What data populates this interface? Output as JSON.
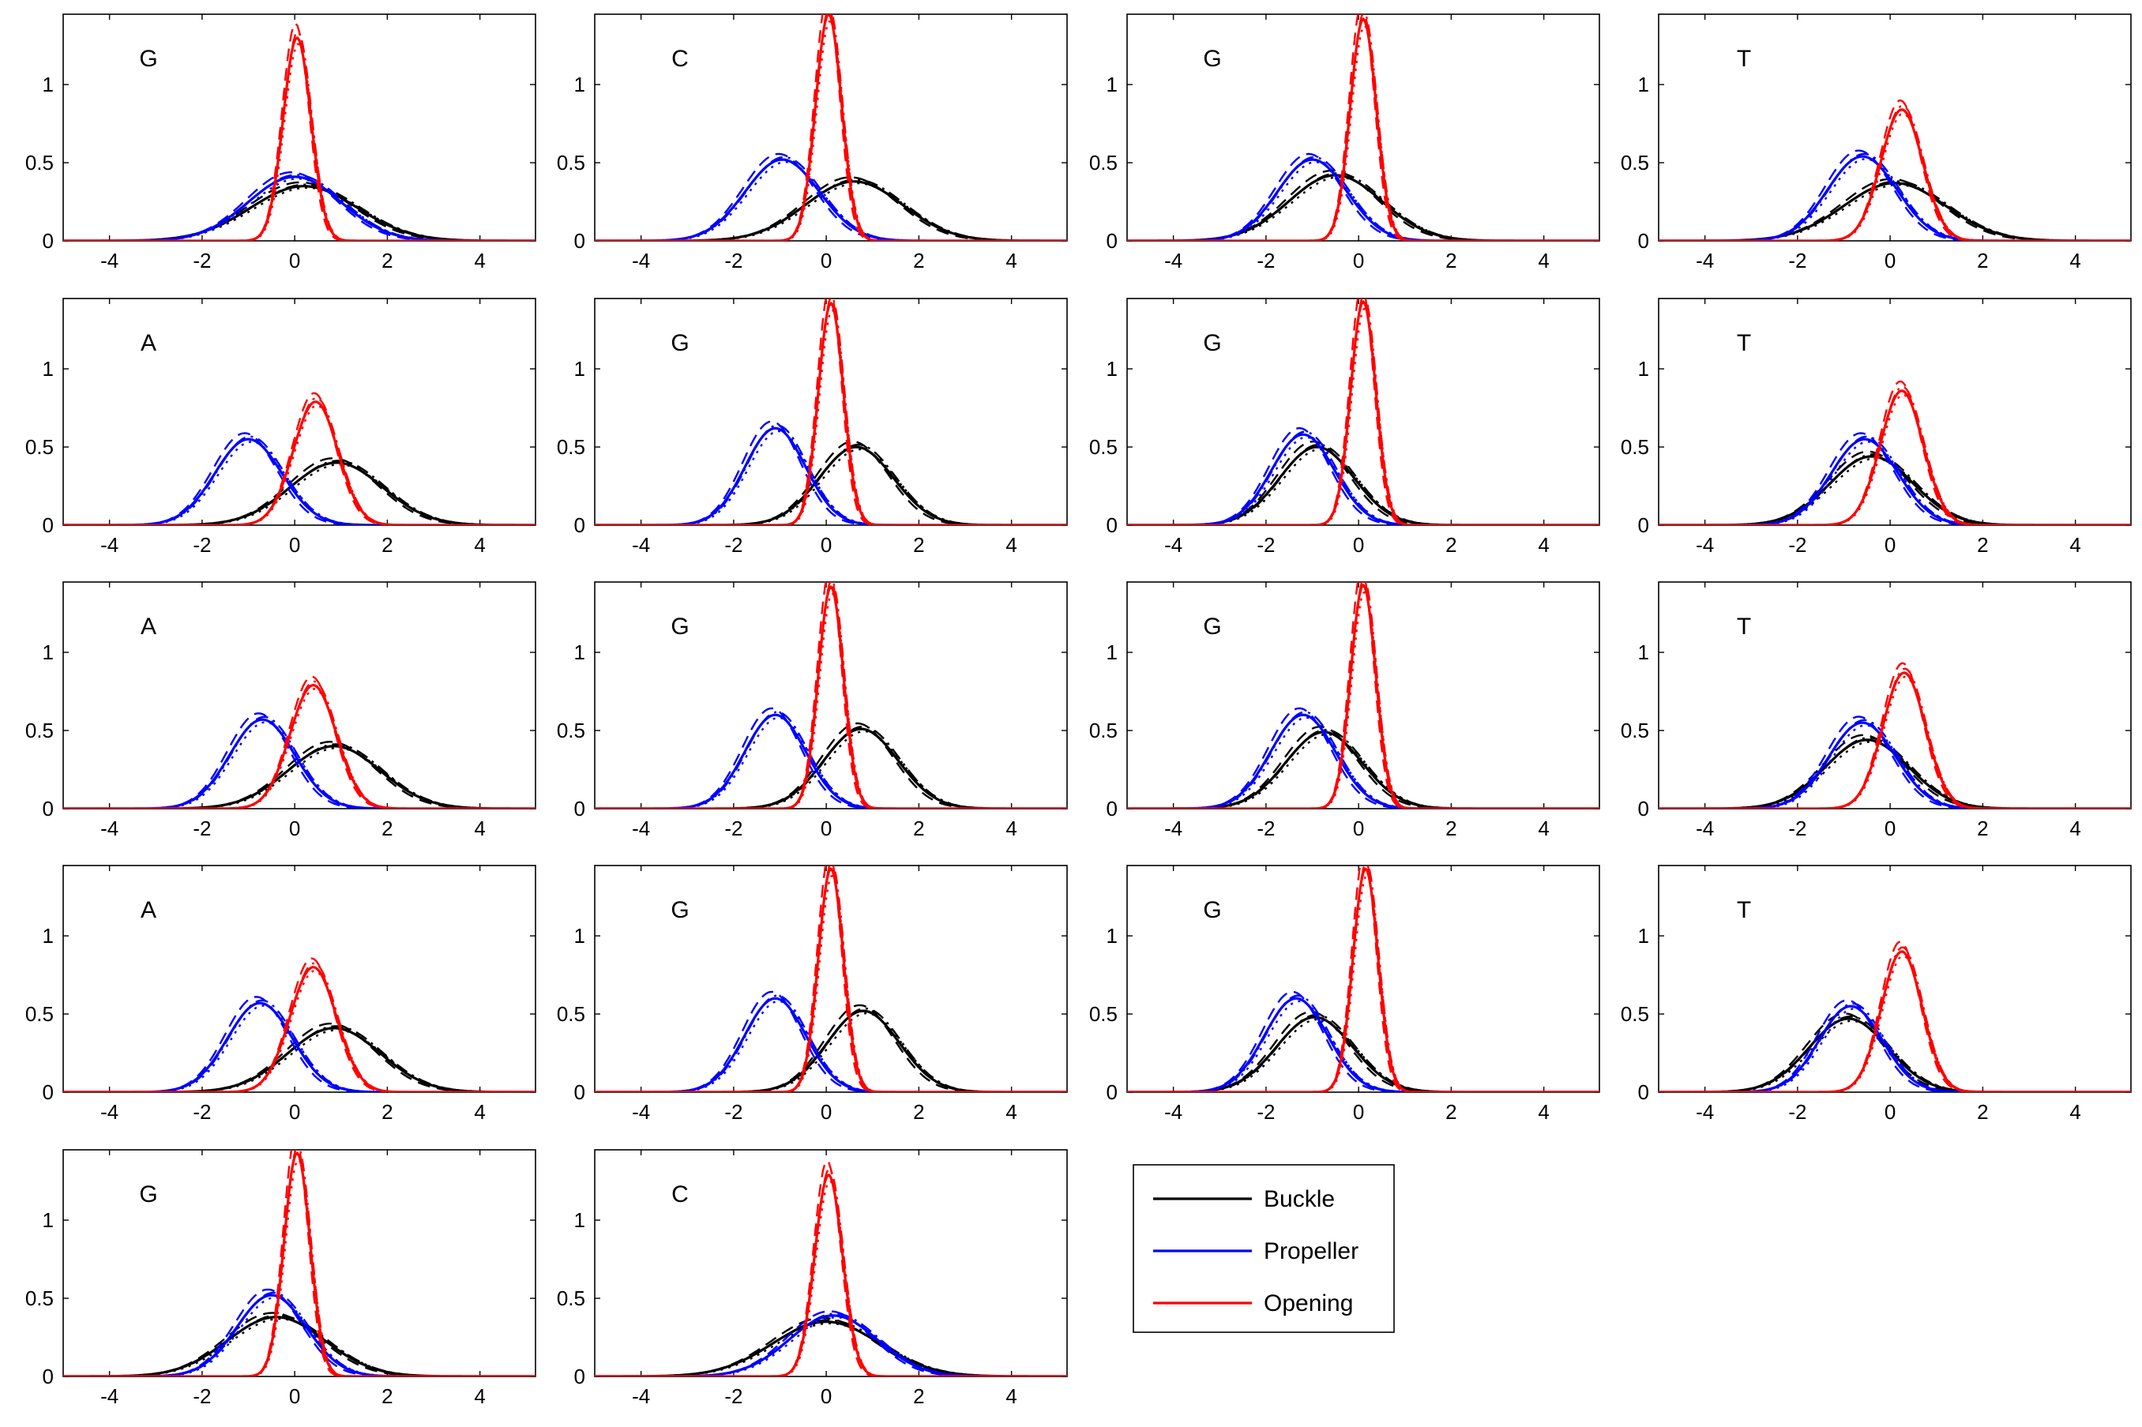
{
  "chart_data": {
    "type": "line",
    "xlim": [
      -5,
      5.2
    ],
    "ylim": [
      0,
      1.45
    ],
    "xticks": [
      -4,
      -2,
      0,
      2,
      4
    ],
    "yticks": [
      0,
      0.5,
      1
    ],
    "grid": false,
    "legend": {
      "placement": "inside empty cell, row 5 column 3",
      "entries": [
        {
          "label": "Buckle",
          "color": "#000000"
        },
        {
          "label": "Propeller",
          "color": "#0000ff"
        },
        {
          "label": "Opening",
          "color": "#ff0000"
        }
      ]
    },
    "series_styles": [
      "solid",
      "dashed",
      "dashdot",
      "dotted"
    ],
    "panels": [
      {
        "label": "G",
        "row": 0,
        "col": 0,
        "buckle": {
          "mu": 0.2,
          "sigma": 1.15,
          "peak": 0.35
        },
        "propeller": {
          "mu": 0.0,
          "sigma": 1.0,
          "peak": 0.41
        },
        "opening": {
          "mu": 0.05,
          "sigma": 0.3,
          "peak": 1.3
        }
      },
      {
        "label": "C",
        "row": 0,
        "col": 1,
        "buckle": {
          "mu": 0.6,
          "sigma": 1.05,
          "peak": 0.38
        },
        "propeller": {
          "mu": -0.95,
          "sigma": 0.8,
          "peak": 0.52
        },
        "opening": {
          "mu": 0.05,
          "sigma": 0.28,
          "peak": 1.45
        }
      },
      {
        "label": "G",
        "row": 0,
        "col": 2,
        "buckle": {
          "mu": -0.5,
          "sigma": 1.0,
          "peak": 0.42
        },
        "propeller": {
          "mu": -1.0,
          "sigma": 0.75,
          "peak": 0.52
        },
        "opening": {
          "mu": 0.1,
          "sigma": 0.28,
          "peak": 1.42
        }
      },
      {
        "label": "T",
        "row": 0,
        "col": 3,
        "buckle": {
          "mu": 0.1,
          "sigma": 1.1,
          "peak": 0.37
        },
        "propeller": {
          "mu": -0.6,
          "sigma": 0.75,
          "peak": 0.54
        },
        "opening": {
          "mu": 0.25,
          "sigma": 0.45,
          "peak": 0.84
        }
      },
      {
        "label": "A",
        "row": 1,
        "col": 0,
        "buckle": {
          "mu": 0.9,
          "sigma": 1.0,
          "peak": 0.4
        },
        "propeller": {
          "mu": -1.0,
          "sigma": 0.72,
          "peak": 0.55
        },
        "opening": {
          "mu": 0.45,
          "sigma": 0.48,
          "peak": 0.79
        }
      },
      {
        "label": "G",
        "row": 1,
        "col": 1,
        "buckle": {
          "mu": 0.65,
          "sigma": 0.8,
          "peak": 0.5
        },
        "propeller": {
          "mu": -1.1,
          "sigma": 0.65,
          "peak": 0.62
        },
        "opening": {
          "mu": 0.1,
          "sigma": 0.27,
          "peak": 1.42
        }
      },
      {
        "label": "G",
        "row": 1,
        "col": 2,
        "buckle": {
          "mu": -0.9,
          "sigma": 0.8,
          "peak": 0.5
        },
        "propeller": {
          "mu": -1.2,
          "sigma": 0.68,
          "peak": 0.58
        },
        "opening": {
          "mu": 0.1,
          "sigma": 0.27,
          "peak": 1.43
        }
      },
      {
        "label": "T",
        "row": 1,
        "col": 3,
        "buckle": {
          "mu": -0.4,
          "sigma": 0.9,
          "peak": 0.44
        },
        "propeller": {
          "mu": -0.55,
          "sigma": 0.72,
          "peak": 0.55
        },
        "opening": {
          "mu": 0.25,
          "sigma": 0.46,
          "peak": 0.86
        }
      },
      {
        "label": "A",
        "row": 2,
        "col": 0,
        "buckle": {
          "mu": 0.85,
          "sigma": 1.0,
          "peak": 0.4
        },
        "propeller": {
          "mu": -0.7,
          "sigma": 0.7,
          "peak": 0.57
        },
        "opening": {
          "mu": 0.4,
          "sigma": 0.5,
          "peak": 0.79
        }
      },
      {
        "label": "G",
        "row": 2,
        "col": 1,
        "buckle": {
          "mu": 0.75,
          "sigma": 0.8,
          "peak": 0.51
        },
        "propeller": {
          "mu": -1.1,
          "sigma": 0.66,
          "peak": 0.6
        },
        "opening": {
          "mu": 0.1,
          "sigma": 0.27,
          "peak": 1.42
        }
      },
      {
        "label": "G",
        "row": 2,
        "col": 2,
        "buckle": {
          "mu": -0.75,
          "sigma": 0.82,
          "peak": 0.49
        },
        "propeller": {
          "mu": -1.2,
          "sigma": 0.7,
          "peak": 0.6
        },
        "opening": {
          "mu": 0.1,
          "sigma": 0.27,
          "peak": 1.43
        }
      },
      {
        "label": "T",
        "row": 2,
        "col": 3,
        "buckle": {
          "mu": -0.5,
          "sigma": 0.9,
          "peak": 0.44
        },
        "propeller": {
          "mu": -0.6,
          "sigma": 0.72,
          "peak": 0.55
        },
        "opening": {
          "mu": 0.3,
          "sigma": 0.46,
          "peak": 0.87
        }
      },
      {
        "label": "A",
        "row": 3,
        "col": 0,
        "buckle": {
          "mu": 0.85,
          "sigma": 1.0,
          "peak": 0.41
        },
        "propeller": {
          "mu": -0.75,
          "sigma": 0.7,
          "peak": 0.57
        },
        "opening": {
          "mu": 0.4,
          "sigma": 0.5,
          "peak": 0.8
        }
      },
      {
        "label": "G",
        "row": 3,
        "col": 1,
        "buckle": {
          "mu": 0.8,
          "sigma": 0.78,
          "peak": 0.52
        },
        "propeller": {
          "mu": -1.1,
          "sigma": 0.66,
          "peak": 0.6
        },
        "opening": {
          "mu": 0.1,
          "sigma": 0.27,
          "peak": 1.43
        }
      },
      {
        "label": "G",
        "row": 3,
        "col": 2,
        "buckle": {
          "mu": -0.95,
          "sigma": 0.82,
          "peak": 0.48
        },
        "propeller": {
          "mu": -1.35,
          "sigma": 0.68,
          "peak": 0.6
        },
        "opening": {
          "mu": 0.15,
          "sigma": 0.27,
          "peak": 1.43
        }
      },
      {
        "label": "T",
        "row": 3,
        "col": 3,
        "buckle": {
          "mu": -0.9,
          "sigma": 0.85,
          "peak": 0.47
        },
        "propeller": {
          "mu": -0.85,
          "sigma": 0.68,
          "peak": 0.55
        },
        "opening": {
          "mu": 0.25,
          "sigma": 0.44,
          "peak": 0.9
        }
      },
      {
        "label": "G",
        "row": 4,
        "col": 0,
        "buckle": {
          "mu": -0.4,
          "sigma": 1.05,
          "peak": 0.38
        },
        "propeller": {
          "mu": -0.5,
          "sigma": 0.75,
          "peak": 0.52
        },
        "opening": {
          "mu": 0.05,
          "sigma": 0.28,
          "peak": 1.43
        }
      },
      {
        "label": "C",
        "row": 4,
        "col": 1,
        "buckle": {
          "mu": 0.0,
          "sigma": 1.15,
          "peak": 0.35
        },
        "propeller": {
          "mu": 0.15,
          "sigma": 0.95,
          "peak": 0.39
        },
        "opening": {
          "mu": 0.05,
          "sigma": 0.3,
          "peak": 1.29
        }
      }
    ]
  }
}
